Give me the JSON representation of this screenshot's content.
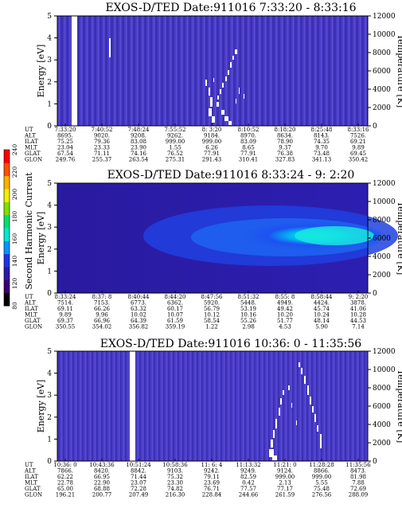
{
  "chart_data": [
    {
      "type": "heatmap",
      "title": "EXOS-D/TED   Date:911016  7:33:20 - 8:33:16",
      "ylabel": "Energy [eV]",
      "y2label": "Temperature [K]",
      "ylim": [
        0,
        5
      ],
      "yticks": [
        "0",
        "1",
        "2",
        "3",
        "4",
        "5"
      ],
      "y2lim": [
        0,
        12000
      ],
      "y2ticks": [
        "0",
        "2000",
        "4000",
        "6000",
        "8000",
        "10000",
        "12000"
      ],
      "xticks": [
        "7:33:20",
        "7:40:52",
        "7:48:24",
        "7:55:52",
        "8: 3:20",
        "8:10:52",
        "8:18:20",
        "8:25:48",
        "8:33:16"
      ],
      "annotation_rows": [
        {
          "label": "UT",
          "values": [
            "7:33:20",
            "7:40:52",
            "7:48:24",
            "7:55:52",
            "8: 3:20",
            "8:10:52",
            "8:18:20",
            "8:25:48",
            "8:33:16"
          ]
        },
        {
          "label": "ALT",
          "values": [
            "8695.",
            "9020.",
            "9208.",
            "9262.",
            "9184.",
            "8970.",
            "8634.",
            "8143.",
            "7526."
          ]
        },
        {
          "label": "ILAT",
          "values": [
            "75.25",
            "79.36",
            "83.08",
            "999.00",
            "999.00",
            "83.09",
            "78.90",
            "74.35",
            "69.21"
          ]
        },
        {
          "label": "MLT",
          "values": [
            "23.04",
            "23.33",
            "23.90",
            "1.55",
            "6.26",
            "8.65",
            "9.37",
            "9.70",
            "9.89"
          ]
        },
        {
          "label": "GLAT",
          "values": [
            "67.54",
            "71.11",
            "74.16",
            "76.52",
            "77.91",
            "77.91",
            "76.38",
            "73.48",
            "69.45"
          ]
        },
        {
          "label": "GLON",
          "values": [
            "249.76",
            "255.37",
            "263.54",
            "275.31",
            "291.43",
            "310.41",
            "327.83",
            "341.13",
            "350.42"
          ]
        }
      ]
    },
    {
      "type": "heatmap",
      "title": "EXOS-D/TED   Date:911016  8:33:24 - 9: 2:20",
      "ylabel": "Energy [eV]",
      "y2label": "Temperature [K]",
      "ylim": [
        0,
        5
      ],
      "yticks": [
        "0",
        "1",
        "2",
        "3",
        "4",
        "5"
      ],
      "y2lim": [
        0,
        12000
      ],
      "y2ticks": [
        "0",
        "2000",
        "4000",
        "6000",
        "8000",
        "10000",
        "12000"
      ],
      "colorbar": {
        "label": "Second Harmonic Current",
        "ticks": [
          "80",
          "120",
          "140",
          "160",
          "180",
          "200",
          "220",
          "240"
        ],
        "colors": [
          "#000000",
          "#3a0070",
          "#2a1aa8",
          "#1e32e8",
          "#0096ff",
          "#00e8d0",
          "#00e070",
          "#80e000",
          "#f0f000",
          "#ffb000",
          "#ff5000",
          "#ff0000"
        ]
      },
      "xticks": [
        "8:33:24",
        "8:37: 8",
        "8:40:44",
        "8:44:20",
        "8:47:56",
        "8:51:32",
        "8:55: 8",
        "8:58:44",
        "9: 2:20"
      ],
      "annotation_rows": [
        {
          "label": "UT",
          "values": [
            "8:33:24",
            "8:37: 8",
            "8:40:44",
            "8:44:20",
            "8:47:56",
            "8:51:32",
            "8:55: 8",
            "8:58:44",
            "9: 2:20"
          ]
        },
        {
          "label": "ALT",
          "values": [
            "7514.",
            "7153.",
            "6773.",
            "6362.",
            "5920.",
            "5448.",
            "4949.",
            "4424.",
            "3878."
          ]
        },
        {
          "label": "ILAT",
          "values": [
            "69.11",
            "66.26",
            "63.32",
            "60.17",
            "56.79",
            "53.19",
            "49.42",
            "45.74",
            "41.06"
          ]
        },
        {
          "label": "MLT",
          "values": [
            "9.89",
            "9.96",
            "10.02",
            "10.07",
            "10.12",
            "10.16",
            "10.20",
            "10.24",
            "10.28"
          ]
        },
        {
          "label": "GLAT",
          "values": [
            "69.37",
            "66.96",
            "64.39",
            "61.59",
            "58.54",
            "55.26",
            "51.77",
            "48.14",
            "44.53"
          ]
        },
        {
          "label": "GLON",
          "values": [
            "350.55",
            "354.02",
            "356.82",
            "359.19",
            "1.22",
            "2.98",
            "4.53",
            "5.90",
            "7.14"
          ]
        }
      ]
    },
    {
      "type": "heatmap",
      "title": "EXOS-D/TED   Date:911016  10:36: 0 - 11:35:56",
      "ylabel": "Energy [eV]",
      "y2label": "Temperature [K]",
      "ylim": [
        0,
        5
      ],
      "yticks": [
        "0",
        "1",
        "2",
        "3",
        "4",
        "5"
      ],
      "y2lim": [
        0,
        12000
      ],
      "y2ticks": [
        "0",
        "2000",
        "4000",
        "6000",
        "8000",
        "10000",
        "12000"
      ],
      "xticks": [
        "10:36: 0",
        "10:43:36",
        "10:51:24",
        "10:58:36",
        "11: 6: 4",
        "11:13:32",
        "11:21: 0",
        "11:28:28",
        "11:35:56"
      ],
      "annotation_rows": [
        {
          "label": "UT",
          "values": [
            "10:36: 0",
            "10:43:36",
            "10:51:24",
            "10:58:36",
            "11: 6: 4",
            "11:13:32",
            "11:21: 0",
            "11:28:28",
            "11:35:56"
          ]
        },
        {
          "label": "ALT",
          "values": [
            "7866.",
            "8420.",
            "8842.",
            "9103.",
            "9242.",
            "9249.",
            "9124.",
            "8866.",
            "8473."
          ]
        },
        {
          "label": "ILAT",
          "values": [
            "62.22",
            "66.95",
            "71.44",
            "75.32",
            "79.11",
            "82.59",
            "999.00",
            "999.00",
            "81.98"
          ]
        },
        {
          "label": "MLT",
          "values": [
            "22.78",
            "22.90",
            "23.07",
            "23.30",
            "23.69",
            "0.42",
            "2.13",
            "5.55",
            "7.88"
          ]
        },
        {
          "label": "GLAT",
          "values": [
            "65.00",
            "68.88",
            "72.28",
            "74.82",
            "76.71",
            "77.57",
            "77.17",
            "75.48",
            "72.69"
          ]
        },
        {
          "label": "GLON",
          "values": [
            "196.21",
            "200.77",
            "207.49",
            "216.30",
            "228.84",
            "244.66",
            "261.59",
            "276.56",
            "288.09"
          ]
        }
      ]
    }
  ]
}
